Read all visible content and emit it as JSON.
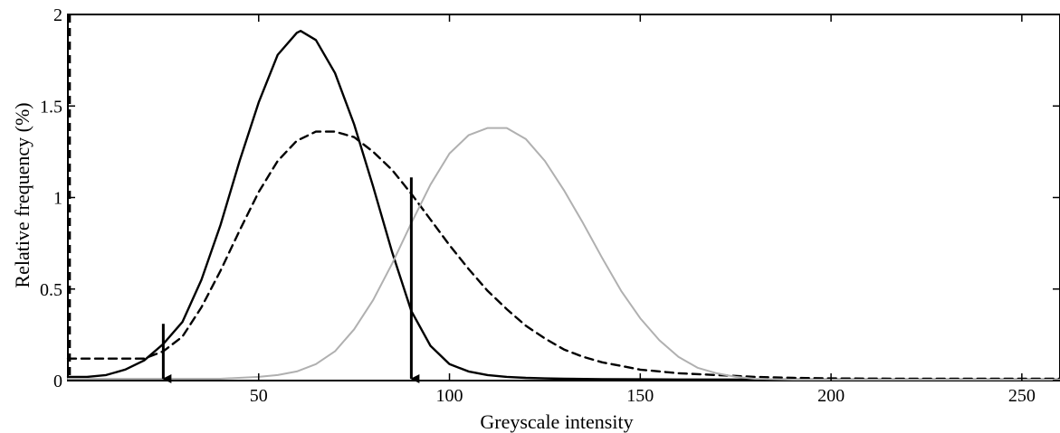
{
  "chart_data": {
    "type": "line",
    "xlabel": "Greyscale intensity",
    "ylabel": "Relative frequency (%)",
    "xlim": [
      0,
      260
    ],
    "ylim": [
      0,
      2
    ],
    "x_ticks": [
      50,
      100,
      150,
      200,
      250
    ],
    "y_ticks": [
      0,
      0.5,
      1,
      1.5,
      2
    ],
    "x_tick_labels": [
      "50",
      "100",
      "150",
      "200",
      "250"
    ],
    "y_tick_labels": [
      "0",
      "0.5",
      "1",
      "1.5",
      "2"
    ],
    "grid": false,
    "series": [
      {
        "style": "solid",
        "color": "#000000",
        "x": [
          0,
          5,
          10,
          15,
          20,
          25,
          30,
          35,
          40,
          45,
          50,
          55,
          60,
          61,
          65,
          70,
          75,
          80,
          85,
          90,
          95,
          100,
          105,
          110,
          115,
          120,
          125,
          130,
          140,
          150,
          160,
          200,
          260
        ],
        "y": [
          0.02,
          0.02,
          0.03,
          0.06,
          0.11,
          0.2,
          0.32,
          0.55,
          0.85,
          1.2,
          1.52,
          1.78,
          1.9,
          1.91,
          1.86,
          1.68,
          1.4,
          1.06,
          0.7,
          0.38,
          0.19,
          0.09,
          0.05,
          0.03,
          0.02,
          0.015,
          0.012,
          0.01,
          0.008,
          0.007,
          0.006,
          0.005,
          0.005
        ]
      },
      {
        "style": "dashed",
        "color": "#000000",
        "x": [
          0,
          5,
          10,
          15,
          20,
          25,
          30,
          35,
          40,
          45,
          50,
          55,
          60,
          65,
          70,
          75,
          80,
          85,
          90,
          95,
          100,
          105,
          110,
          115,
          120,
          125,
          130,
          135,
          140,
          145,
          150,
          160,
          170,
          180,
          190,
          200,
          220,
          240,
          260
        ],
        "y": [
          0.12,
          0.12,
          0.12,
          0.12,
          0.12,
          0.16,
          0.24,
          0.4,
          0.6,
          0.82,
          1.03,
          1.2,
          1.31,
          1.36,
          1.36,
          1.33,
          1.25,
          1.15,
          1.02,
          0.88,
          0.74,
          0.61,
          0.49,
          0.39,
          0.3,
          0.23,
          0.17,
          0.13,
          0.1,
          0.08,
          0.06,
          0.04,
          0.03,
          0.02,
          0.015,
          0.012,
          0.01,
          0.01,
          0.01
        ]
      },
      {
        "style": "solid",
        "color": "#b0b0b0",
        "x": [
          0,
          10,
          20,
          30,
          40,
          50,
          55,
          60,
          65,
          70,
          75,
          80,
          85,
          90,
          95,
          100,
          105,
          110,
          115,
          120,
          125,
          130,
          135,
          140,
          145,
          150,
          155,
          160,
          165,
          170,
          175,
          180,
          190,
          200,
          260
        ],
        "y": [
          0.01,
          0.01,
          0.01,
          0.01,
          0.01,
          0.02,
          0.03,
          0.05,
          0.09,
          0.16,
          0.28,
          0.44,
          0.64,
          0.86,
          1.07,
          1.24,
          1.34,
          1.38,
          1.38,
          1.32,
          1.2,
          1.04,
          0.86,
          0.67,
          0.49,
          0.34,
          0.22,
          0.13,
          0.07,
          0.04,
          0.02,
          0.01,
          0.005,
          0.005,
          0.005
        ]
      }
    ],
    "vertical_dashed_line": {
      "x": 0.5,
      "y_range": [
        0.02,
        2
      ],
      "color": "#000000"
    },
    "arrows": [
      {
        "x": 25,
        "y_start": 0.31,
        "y_end": 0.0
      },
      {
        "x": 90,
        "y_start": 1.11,
        "y_end": 0.0
      }
    ]
  }
}
